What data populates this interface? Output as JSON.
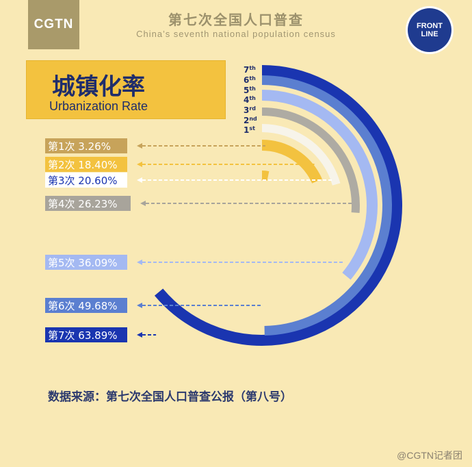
{
  "brand": {
    "logo": "CGTN",
    "badge_line1": "FRONT",
    "badge_line2": "LINE"
  },
  "header": {
    "title_cn": "第七次全国人口普查",
    "title_en": "China’s seventh national population census"
  },
  "banner": {
    "title_cn": "城镇化率",
    "title_en": "Urbanization Rate"
  },
  "chart_data": {
    "type": "radial-bar",
    "title": "城镇化率",
    "subtitle": "Urbanization Rate",
    "series_labels": [
      "1st",
      "2nd",
      "3rd",
      "4th",
      "5th",
      "6th",
      "7th"
    ],
    "categories": [
      "第1次",
      "第2次",
      "第3次",
      "第4次",
      "第5次",
      "第6次",
      "第7次"
    ],
    "values": [
      3.26,
      18.4,
      20.6,
      26.23,
      36.09,
      49.68,
      63.89
    ],
    "value_labels": [
      "3.26%",
      "18.40%",
      "20.60%",
      "26.23%",
      "36.09%",
      "49.68%",
      "63.89%"
    ],
    "colors": [
      "#f3c23f",
      "#f3c23f",
      "#f7f4ea",
      "#aeaba3",
      "#a4b9f2",
      "#5b7fd0",
      "#1a35b0"
    ],
    "label_bg": [
      "#c7a35a",
      "#f3c23f",
      "#ffffff",
      "#a8a49b",
      "#a4b9f2",
      "#5b7fd0",
      "#1a35b0"
    ],
    "label_fg": [
      "#ffffff",
      "#ffffff",
      "#1a35b0",
      "#ffffff",
      "#ffffff",
      "#ffffff",
      "#ffffff"
    ],
    "arrow_colors": [
      "#c7a35a",
      "#f3c23f",
      "#ffffff",
      "#a8a49b",
      "#a4b9f2",
      "#5b7fd0",
      "#1a35b0"
    ],
    "ylim": [
      0,
      100
    ]
  },
  "footer": {
    "source": "数据来源：第七次全国人口普查公报（第八号）",
    "watermark": "@CGTN记者团"
  }
}
